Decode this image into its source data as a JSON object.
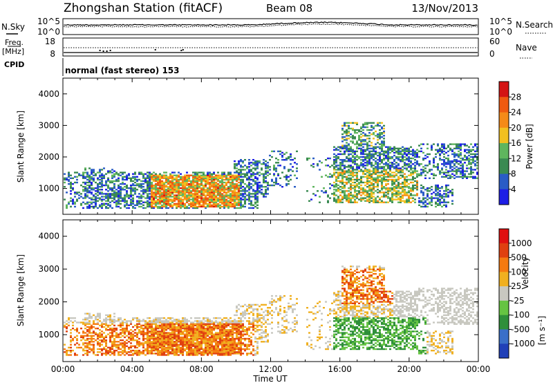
{
  "header": {
    "station": "Zhongshan Station (fitACF)",
    "beam": "Beam 08",
    "date": "13/Nov/2013"
  },
  "panels": {
    "nsky": {
      "label": "N.Sky",
      "right_label": "N.Search",
      "left_ticks": [
        "10^5",
        "10^0"
      ],
      "right_ticks": [
        "10^5",
        "10^0"
      ]
    },
    "freq": {
      "label_line1": "Freq.",
      "label_line2": "[MHz]",
      "right_label": "Nave",
      "left_ticks": [
        "18",
        "8"
      ],
      "right_ticks": [
        "60",
        "0"
      ]
    },
    "cpid": {
      "label": "CPID",
      "text": "normal (fast stereo) 153"
    }
  },
  "chart_data": [
    {
      "type": "heatmap",
      "name": "power",
      "ylabel": "Slant Range [km]",
      "ylim": [
        180,
        4500
      ],
      "yticks": [
        1000,
        2000,
        3000,
        4000
      ],
      "xlim": [
        0,
        24
      ],
      "colorbar": {
        "label": "Power [dB]",
        "ticks": [
          "4",
          "8",
          "12",
          "16",
          "20",
          "24",
          "28"
        ],
        "colors": [
          "#1e1ee6",
          "#2a5cc6",
          "#3a8a52",
          "#5fb55e",
          "#f2c020",
          "#f58a18",
          "#ef5a10",
          "#d41414"
        ]
      }
    },
    {
      "type": "heatmap",
      "name": "velocity",
      "ylabel": "Slant Range [km]",
      "ylim": [
        180,
        4500
      ],
      "yticks": [
        1000,
        2000,
        3000,
        4000
      ],
      "xlim": [
        0,
        24
      ],
      "colorbar": {
        "label": "Velocity",
        "unit": "[m s⁻¹]",
        "ticks": [
          "1000",
          "500",
          "100",
          "25",
          "-25",
          "-100",
          "-500",
          "-1000"
        ],
        "colors": [
          "#2040b8",
          "#3a6fc8",
          "#2f8f3a",
          "#66c442",
          "#c8c8c0",
          "#f0b020",
          "#f57a10",
          "#e04010",
          "#e01010"
        ]
      }
    }
  ],
  "x_axis": {
    "ticks": [
      "00:00",
      "04:00",
      "08:00",
      "12:00",
      "16:00",
      "20:00",
      "00:00"
    ],
    "label": "Time UT"
  }
}
